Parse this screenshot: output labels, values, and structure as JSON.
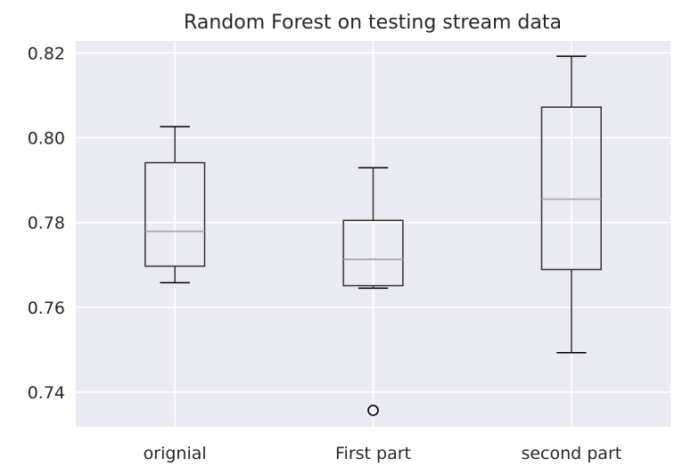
{
  "chart_data": {
    "type": "box",
    "title": "Random Forest on testing stream data",
    "xlabel": "",
    "ylabel": "",
    "ylim": [
      0.7318,
      0.8228
    ],
    "yticks": [
      0.74,
      0.76,
      0.78,
      0.8,
      0.82
    ],
    "ytick_labels": [
      "0.74",
      "0.76",
      "0.78",
      "0.80",
      "0.82"
    ],
    "grid": true,
    "categories": [
      "orignial",
      "First part",
      "second part"
    ],
    "boxes": [
      {
        "category": "orignial",
        "whisker_low": 0.7658,
        "q1": 0.7697,
        "median": 0.7779,
        "q3": 0.7941,
        "whisker_high": 0.8026,
        "outliers": []
      },
      {
        "category": "First part",
        "whisker_low": 0.7645,
        "q1": 0.7651,
        "median": 0.7713,
        "q3": 0.7805,
        "whisker_high": 0.7929,
        "outliers": [
          0.7357
        ]
      },
      {
        "category": "second part",
        "whisker_low": 0.7493,
        "q1": 0.7689,
        "median": 0.7855,
        "q3": 0.8072,
        "whisker_high": 0.8192,
        "outliers": []
      }
    ],
    "colors": {
      "plot_background": "#eaeaf2",
      "grid": "#ffffff",
      "box_line": "#333333",
      "median_line": "#aaaaaa",
      "text": "#262626"
    }
  }
}
